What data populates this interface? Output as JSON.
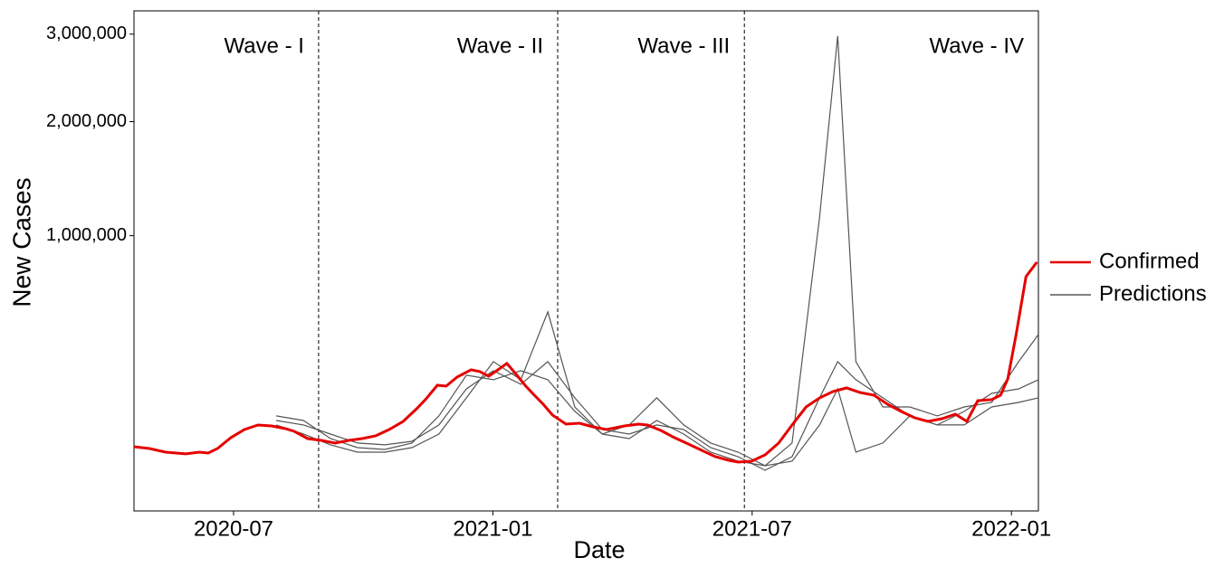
{
  "chart_data": {
    "type": "line",
    "x_label": "Date",
    "y_label": "New Cases",
    "scale": "sqrt",
    "xlim": [
      2020.308,
      2022.052
    ],
    "ylim": [
      0,
      3300000
    ],
    "xticks": [
      {
        "value": 2020.5,
        "label": "2020-07"
      },
      {
        "value": 2021.0,
        "label": "2021-01"
      },
      {
        "value": 2021.5,
        "label": "2021-07"
      },
      {
        "value": 2022.0,
        "label": "2022-01"
      }
    ],
    "yticks": [
      {
        "value": 1000000,
        "label": "1,000,000"
      },
      {
        "value": 2000000,
        "label": "2,000,000"
      },
      {
        "value": 3000000,
        "label": "3,000,000"
      }
    ],
    "wave_lines": [
      2020.664,
      2021.125,
      2021.485
    ],
    "wave_labels": [
      "Wave - I",
      "Wave - II",
      "Wave - III",
      "Wave - IV"
    ],
    "series": [
      {
        "name": "Confirmed",
        "color": "#e60000",
        "x": [
          2020.308,
          2020.338,
          2020.369,
          2020.408,
          2020.434,
          2020.451,
          2020.469,
          2020.495,
          2020.521,
          2020.547,
          2020.573,
          2020.6,
          2020.617,
          2020.643,
          2020.669,
          2020.696,
          2020.722,
          2020.748,
          2020.774,
          2020.8,
          2020.827,
          2020.853,
          2020.87,
          2020.893,
          2020.91,
          2020.931,
          2020.958,
          2020.975,
          2020.992,
          2021.01,
          2021.027,
          2021.045,
          2021.062,
          2021.08,
          2021.097,
          2021.115,
          2021.141,
          2021.167,
          2021.193,
          2021.219,
          2021.254,
          2021.281,
          2021.298,
          2021.324,
          2021.35,
          2021.377,
          2021.403,
          2021.429,
          2021.455,
          2021.473,
          2021.499,
          2021.525,
          2021.551,
          2021.577,
          2021.604,
          2021.63,
          2021.656,
          2021.682,
          2021.708,
          2021.735,
          2021.761,
          2021.787,
          2021.813,
          2021.839,
          2021.866,
          2021.892,
          2021.914,
          2021.935,
          2021.962,
          2021.979,
          2021.993,
          2022.009,
          2022.028,
          2022.049
        ],
        "values": [
          54400,
          51400,
          45600,
          42900,
          45600,
          44200,
          51400,
          70900,
          87400,
          97400,
          95400,
          89400,
          83600,
          69100,
          65700,
          60700,
          65700,
          69100,
          74400,
          87400,
          105800,
          137900,
          163400,
          208600,
          205600,
          236500,
          262800,
          256100,
          239700,
          262800,
          286900,
          246200,
          208600,
          176900,
          150300,
          121300,
          99500,
          101600,
          93400,
          87400,
          95400,
          99500,
          97400,
          85500,
          70900,
          59100,
          48500,
          38900,
          33900,
          31500,
          32700,
          41500,
          60700,
          97400,
          142800,
          168700,
          188200,
          199700,
          185300,
          176900,
          150300,
          130700,
          114600,
          105800,
          112300,
          123600,
          105800,
          160700,
          163400,
          176900,
          230200,
          410600,
          724400,
          816700
        ]
      },
      {
        "name": "Predictions",
        "color": "#555555",
        "x": [
          2020.582,
          2020.635,
          2020.687,
          2020.739,
          2020.792,
          2020.844,
          2020.896,
          2020.949,
          2021.001,
          2021.054,
          2021.106,
          2021.158,
          2021.211,
          2021.263,
          2021.316,
          2021.368,
          2021.42,
          2021.473,
          2021.525,
          2021.577,
          2021.63,
          2021.665,
          2021.7,
          2021.752,
          2021.804,
          2021.857,
          2021.909,
          2021.962,
          2022.014,
          2022.052
        ],
        "runs": [
          [
            108000,
            97500,
            78000,
            60800,
            57600,
            64000,
            97500,
            196800,
            259500,
            211700,
            294000,
            168800,
            87500,
            78000,
            97500,
            87500,
            52900,
            38900,
            21900,
            38900,
            168800,
            294000,
            227100,
            168800,
            119100,
            97500,
            130700,
            182500,
            196800,
            227100
          ],
          [
            119100,
            108000,
            69100,
            52900,
            49900,
            60800,
            119100,
            243000,
            227100,
            259500,
            227100,
            130700,
            78000,
            69100,
            108000,
            78000,
            45600,
            32700,
            27000,
            60800,
            1140800,
            2976800,
            294000,
            142800,
            142800,
            119100,
            142800,
            155500,
            294000,
            410700
          ],
          [
            97500,
            78000,
            57600,
            45600,
            45600,
            52900,
            78000,
            168800,
            294000,
            227100,
            522700,
            142800,
            78000,
            97500,
            168800,
            97500,
            60800,
            45600,
            27000,
            32700,
            97500,
            196800,
            45600,
            60800,
            119100,
            97500,
            97500,
            142800,
            155500,
            168800
          ]
        ]
      }
    ]
  }
}
